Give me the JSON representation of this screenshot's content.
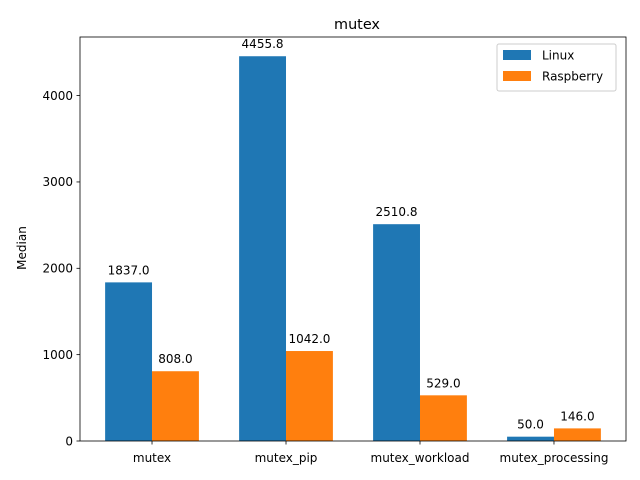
{
  "chart_data": {
    "type": "bar",
    "title": "mutex",
    "xlabel": "",
    "ylabel": "Median",
    "categories": [
      "mutex",
      "mutex_pip",
      "mutex_workload",
      "mutex_processing"
    ],
    "series": [
      {
        "name": "Linux",
        "color": "#1f77b4",
        "values": [
          1837.0,
          4455.8,
          2510.8,
          50.0
        ],
        "labels": [
          "1837.0",
          "4455.8",
          "2510.8",
          "50.0"
        ]
      },
      {
        "name": "Raspberry",
        "color": "#ff7f0e",
        "values": [
          808.0,
          1042.0,
          529.0,
          146.0
        ],
        "labels": [
          "808.0",
          "1042.0",
          "529.0",
          "146.0"
        ]
      }
    ],
    "ylim": [
      0,
      4678.59
    ],
    "yticks": [
      0,
      1000,
      2000,
      3000,
      4000
    ],
    "ytick_labels": [
      "0",
      "1000",
      "2000",
      "3000",
      "4000"
    ],
    "grid": false,
    "legend_position": "top-right"
  }
}
